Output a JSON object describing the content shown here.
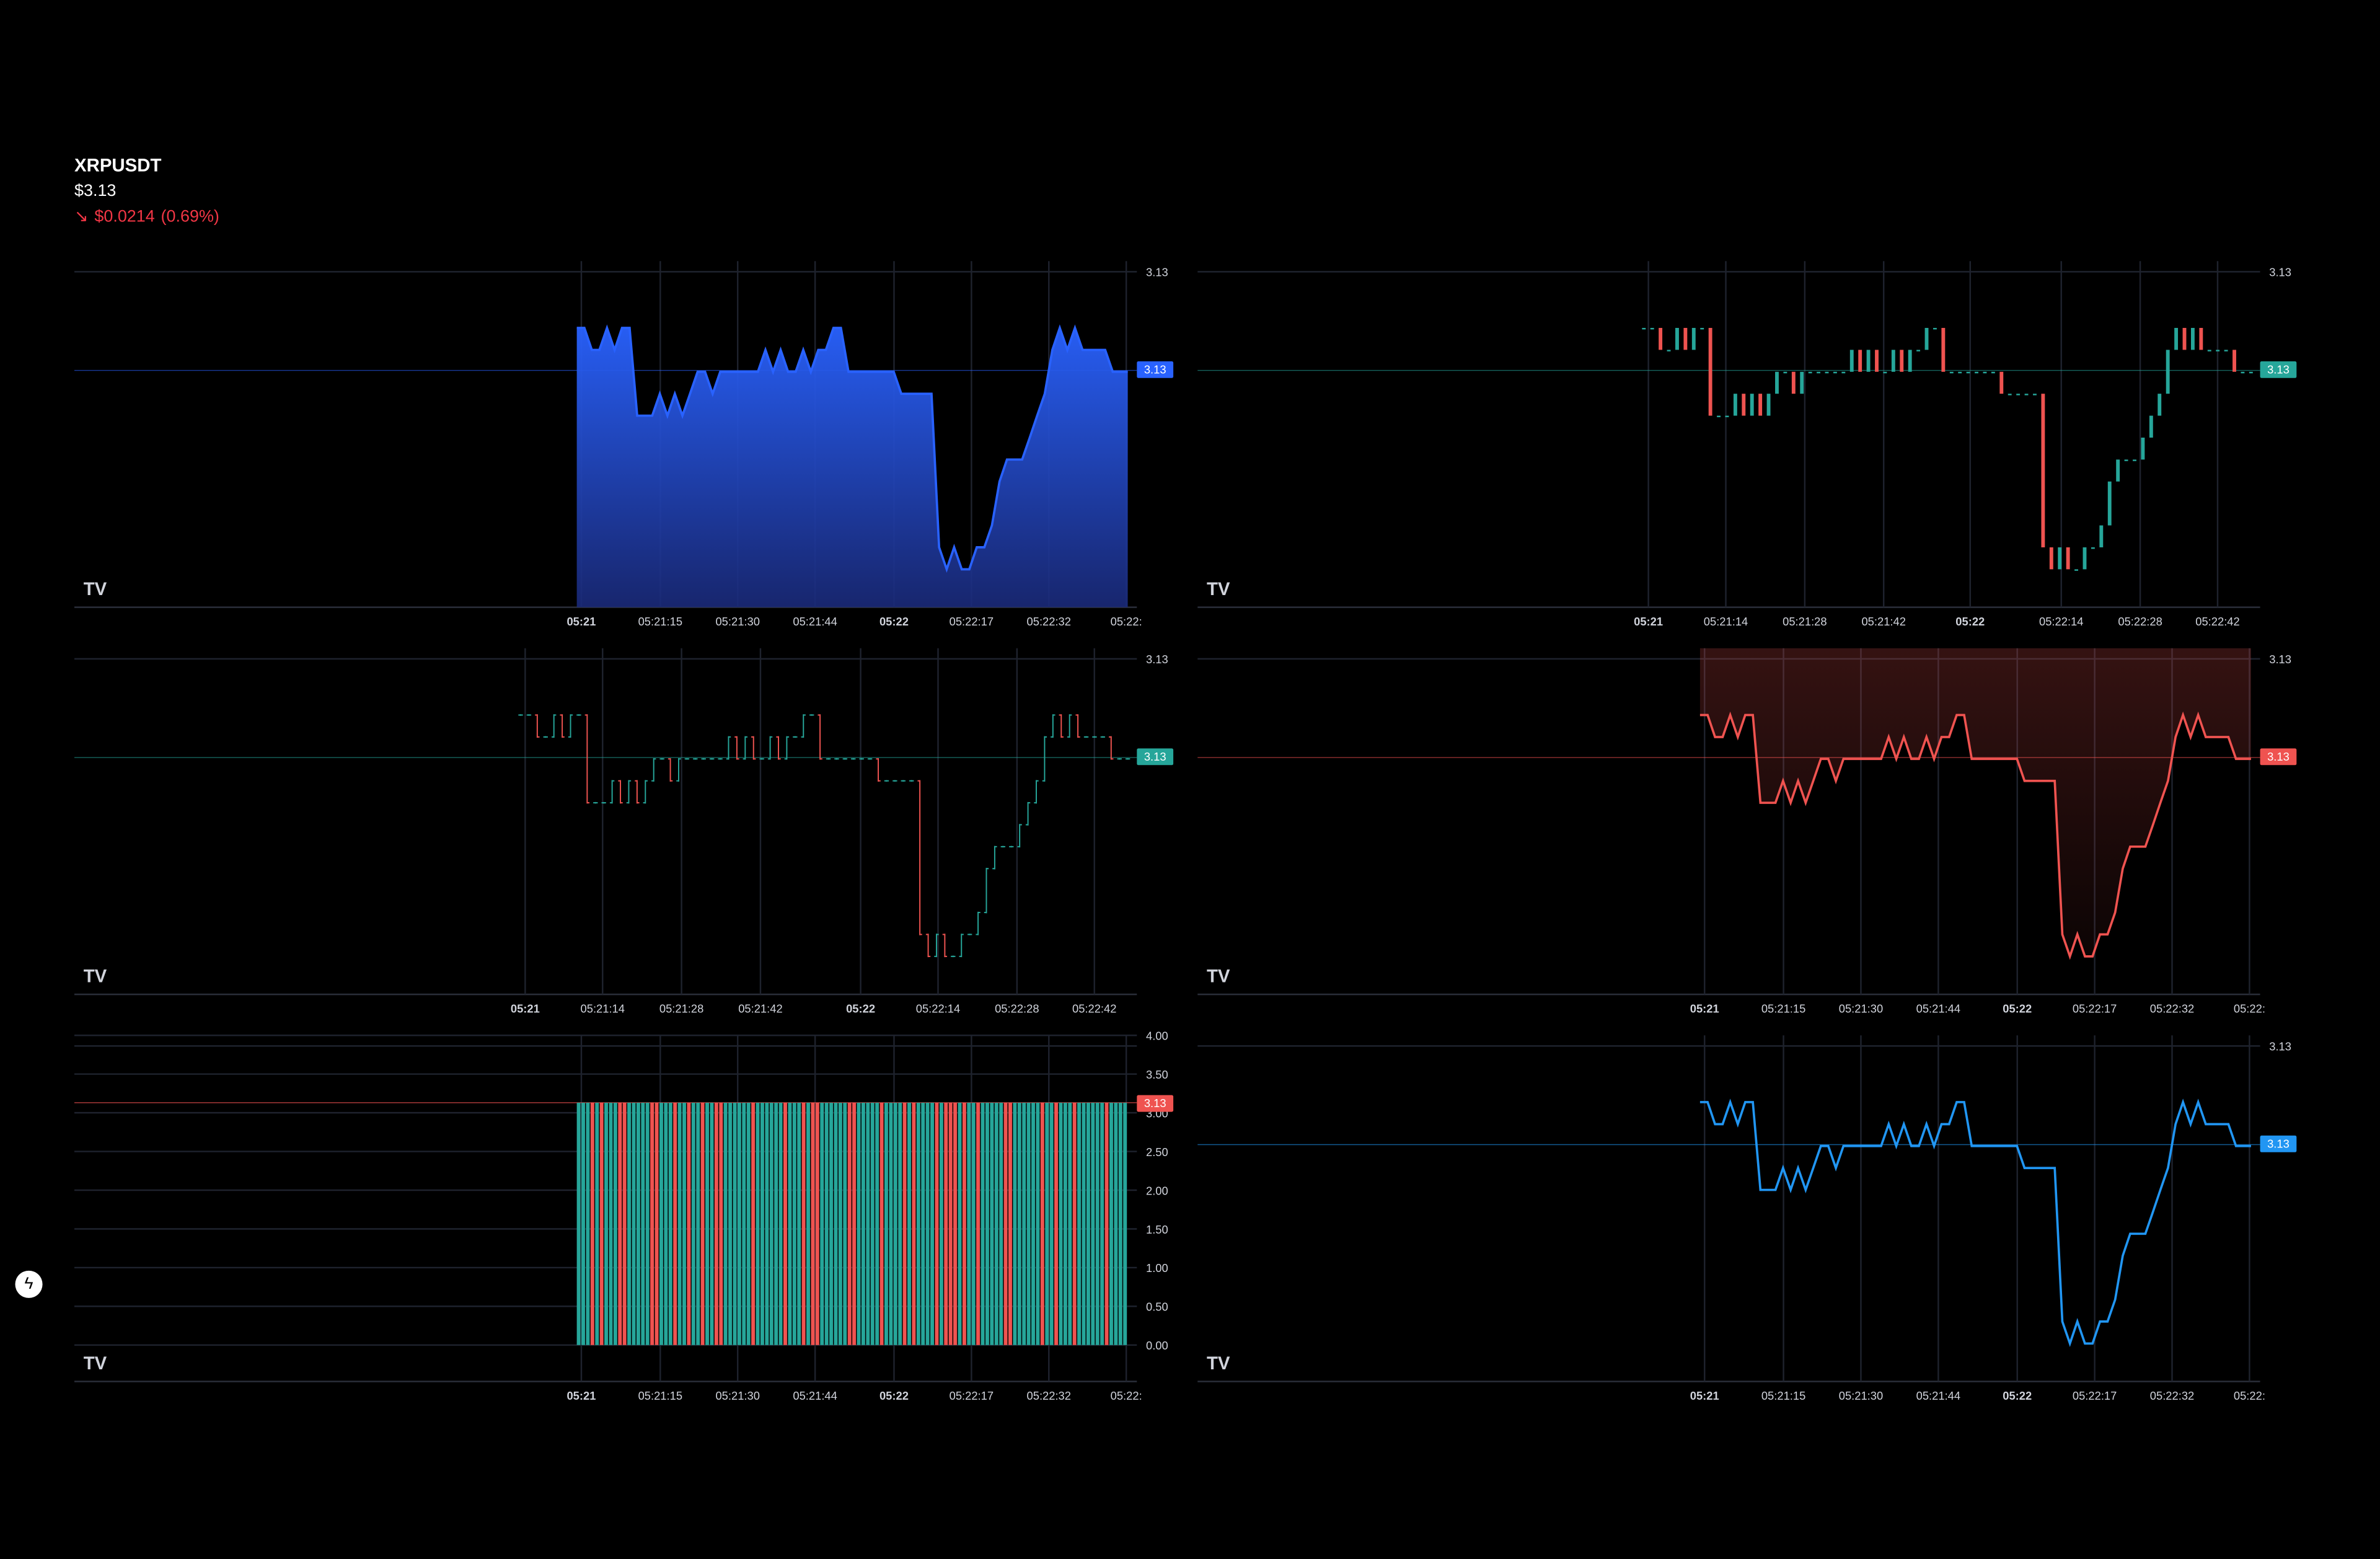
{
  "header": {
    "symbol": "XRPUSDT",
    "price": "$3.13",
    "change_arrow": "↘",
    "change_value": "$0.0214",
    "change_pct": "(0.69%)"
  },
  "colors": {
    "blue": "#2962ff",
    "line_blue": "#2196f3",
    "up": "#26a69a",
    "down": "#ef5350",
    "grid": "#1e222d",
    "background": "#000000"
  },
  "price_label": "3.13",
  "time_labels_a": [
    "05:21",
    "05:21:15",
    "05:21:30",
    "05:21:44",
    "05:22",
    "05:22:17",
    "05:22:32",
    "05:22:"
  ],
  "time_labels_b": [
    "05:21",
    "05:21:14",
    "05:21:28",
    "05:21:42",
    "05:22",
    "05:22:14",
    "05:22:28",
    "05:22:42"
  ],
  "volume_axis": [
    "4.00",
    "3.50",
    "3.00",
    "2.50",
    "2.00",
    "1.50",
    "1.00",
    "0.50",
    "0.00"
  ],
  "icons": {
    "logo": "tradingview-logo-icon",
    "side": "lightning-icon"
  },
  "chart_data": [
    {
      "type": "area",
      "title": "",
      "series": [
        {
          "values": [
            3.1312,
            3.1312,
            3.1311,
            3.1311,
            3.1312,
            3.1311,
            3.1312,
            3.1312,
            3.1308,
            3.1308,
            3.1308,
            3.1309,
            3.1308,
            3.1309,
            3.1308,
            3.1309,
            3.131,
            3.131,
            3.1309,
            3.131,
            3.131,
            3.131,
            3.131,
            3.131,
            3.131,
            3.1311,
            3.131,
            3.1311,
            3.131,
            3.131,
            3.1311,
            3.131,
            3.1311,
            3.1311,
            3.1312,
            3.1312,
            3.131,
            3.131,
            3.131,
            3.131,
            3.131,
            3.131,
            3.131,
            3.1309,
            3.1309,
            3.1309,
            3.1309,
            3.1309,
            3.1302,
            3.1301,
            3.1302,
            3.1301,
            3.1301,
            3.1302,
            3.1302,
            3.1303,
            3.1305,
            3.1306,
            3.1306,
            3.1306,
            3.1307,
            3.1308,
            3.1309,
            3.1311,
            3.1312,
            3.1311,
            3.1312,
            3.1311,
            3.1311,
            3.1311,
            3.1311,
            3.131,
            3.131,
            3.131
          ]
        }
      ],
      "price_label": "3.13",
      "x_tick_labels": [
        "05:21",
        "05:21:15",
        "05:21:30",
        "05:21:44",
        "05:22",
        "05:22:17",
        "05:22:32",
        "05:22:"
      ]
    },
    {
      "type": "candlestick",
      "title": "",
      "series": [
        {
          "values": [
            3.1312,
            3.1312,
            3.1311,
            3.1311,
            3.1312,
            3.1311,
            3.1312,
            3.1312,
            3.1308,
            3.1308,
            3.1308,
            3.1309,
            3.1308,
            3.1309,
            3.1308,
            3.1309,
            3.131,
            3.131,
            3.1309,
            3.131,
            3.131,
            3.131,
            3.131,
            3.131,
            3.131,
            3.1311,
            3.131,
            3.1311,
            3.131,
            3.131,
            3.1311,
            3.131,
            3.1311,
            3.1311,
            3.1312,
            3.1312,
            3.131,
            3.131,
            3.131,
            3.131,
            3.131,
            3.131,
            3.131,
            3.1309,
            3.1309,
            3.1309,
            3.1309,
            3.1309,
            3.1302,
            3.1301,
            3.1302,
            3.1301,
            3.1301,
            3.1302,
            3.1302,
            3.1303,
            3.1305,
            3.1306,
            3.1306,
            3.1306,
            3.1307,
            3.1308,
            3.1309,
            3.1311,
            3.1312,
            3.1311,
            3.1312,
            3.1311,
            3.1311,
            3.1311,
            3.1311,
            3.131,
            3.131,
            3.131
          ]
        }
      ],
      "price_label": "3.13",
      "x_tick_labels": [
        "05:21",
        "05:21:14",
        "05:21:28",
        "05:21:42",
        "05:22",
        "05:22:14",
        "05:22:28",
        "05:22:42"
      ]
    },
    {
      "type": "bar",
      "title": "",
      "series": [
        {
          "values": [
            3.1312,
            3.1312,
            3.1311,
            3.1311,
            3.1312,
            3.1311,
            3.1312,
            3.1312,
            3.1308,
            3.1308,
            3.1308,
            3.1309,
            3.1308,
            3.1309,
            3.1308,
            3.1309,
            3.131,
            3.131,
            3.1309,
            3.131,
            3.131,
            3.131,
            3.131,
            3.131,
            3.131,
            3.1311,
            3.131,
            3.1311,
            3.131,
            3.131,
            3.1311,
            3.131,
            3.1311,
            3.1311,
            3.1312,
            3.1312,
            3.131,
            3.131,
            3.131,
            3.131,
            3.131,
            3.131,
            3.131,
            3.1309,
            3.1309,
            3.1309,
            3.1309,
            3.1309,
            3.1302,
            3.1301,
            3.1302,
            3.1301,
            3.1301,
            3.1302,
            3.1302,
            3.1303,
            3.1305,
            3.1306,
            3.1306,
            3.1306,
            3.1307,
            3.1308,
            3.1309,
            3.1311,
            3.1312,
            3.1311,
            3.1312,
            3.1311,
            3.1311,
            3.1311,
            3.1311,
            3.131,
            3.131,
            3.131
          ]
        }
      ],
      "price_label": "3.13",
      "x_tick_labels": [
        "05:21",
        "05:21:14",
        "05:21:28",
        "05:21:42",
        "05:22",
        "05:22:14",
        "05:22:28",
        "05:22:42"
      ]
    },
    {
      "type": "area",
      "title": "",
      "series": [
        {
          "values": [
            3.1312,
            3.1312,
            3.1311,
            3.1311,
            3.1312,
            3.1311,
            3.1312,
            3.1312,
            3.1308,
            3.1308,
            3.1308,
            3.1309,
            3.1308,
            3.1309,
            3.1308,
            3.1309,
            3.131,
            3.131,
            3.1309,
            3.131,
            3.131,
            3.131,
            3.131,
            3.131,
            3.131,
            3.1311,
            3.131,
            3.1311,
            3.131,
            3.131,
            3.1311,
            3.131,
            3.1311,
            3.1311,
            3.1312,
            3.1312,
            3.131,
            3.131,
            3.131,
            3.131,
            3.131,
            3.131,
            3.131,
            3.1309,
            3.1309,
            3.1309,
            3.1309,
            3.1309,
            3.1302,
            3.1301,
            3.1302,
            3.1301,
            3.1301,
            3.1302,
            3.1302,
            3.1303,
            3.1305,
            3.1306,
            3.1306,
            3.1306,
            3.1307,
            3.1308,
            3.1309,
            3.1311,
            3.1312,
            3.1311,
            3.1312,
            3.1311,
            3.1311,
            3.1311,
            3.1311,
            3.131,
            3.131,
            3.131
          ]
        }
      ],
      "price_label": "3.13",
      "x_tick_labels": [
        "05:21",
        "05:21:15",
        "05:21:30",
        "05:21:44",
        "05:22",
        "05:22:17",
        "05:22:32",
        "05:22:"
      ]
    },
    {
      "type": "bar",
      "title": "",
      "ylim": [
        0,
        4
      ],
      "y_tick_labels": [
        "4.00",
        "3.50",
        "3.00",
        "2.50",
        "2.00",
        "1.50",
        "1.00",
        "0.50",
        "0.00"
      ],
      "series": [
        {
          "values": [
            3.13
          ]
        }
      ],
      "price_label": "3.13",
      "x_tick_labels": [
        "05:21",
        "05:21:15",
        "05:21:30",
        "05:21:44",
        "05:22",
        "05:22:17",
        "05:22:32",
        "05:22:"
      ]
    },
    {
      "type": "line",
      "title": "",
      "series": [
        {
          "values": [
            3.1312,
            3.1312,
            3.1311,
            3.1311,
            3.1312,
            3.1311,
            3.1312,
            3.1312,
            3.1308,
            3.1308,
            3.1308,
            3.1309,
            3.1308,
            3.1309,
            3.1308,
            3.1309,
            3.131,
            3.131,
            3.1309,
            3.131,
            3.131,
            3.131,
            3.131,
            3.131,
            3.131,
            3.1311,
            3.131,
            3.1311,
            3.131,
            3.131,
            3.1311,
            3.131,
            3.1311,
            3.1311,
            3.1312,
            3.1312,
            3.131,
            3.131,
            3.131,
            3.131,
            3.131,
            3.131,
            3.131,
            3.1309,
            3.1309,
            3.1309,
            3.1309,
            3.1309,
            3.1302,
            3.1301,
            3.1302,
            3.1301,
            3.1301,
            3.1302,
            3.1302,
            3.1303,
            3.1305,
            3.1306,
            3.1306,
            3.1306,
            3.1307,
            3.1308,
            3.1309,
            3.1311,
            3.1312,
            3.1311,
            3.1312,
            3.1311,
            3.1311,
            3.1311,
            3.1311,
            3.131,
            3.131,
            3.131
          ]
        }
      ],
      "price_label": "3.13",
      "x_tick_labels": [
        "05:21",
        "05:21:15",
        "05:21:30",
        "05:21:44",
        "05:22",
        "05:22:17",
        "05:22:32",
        "05:22:"
      ]
    }
  ]
}
